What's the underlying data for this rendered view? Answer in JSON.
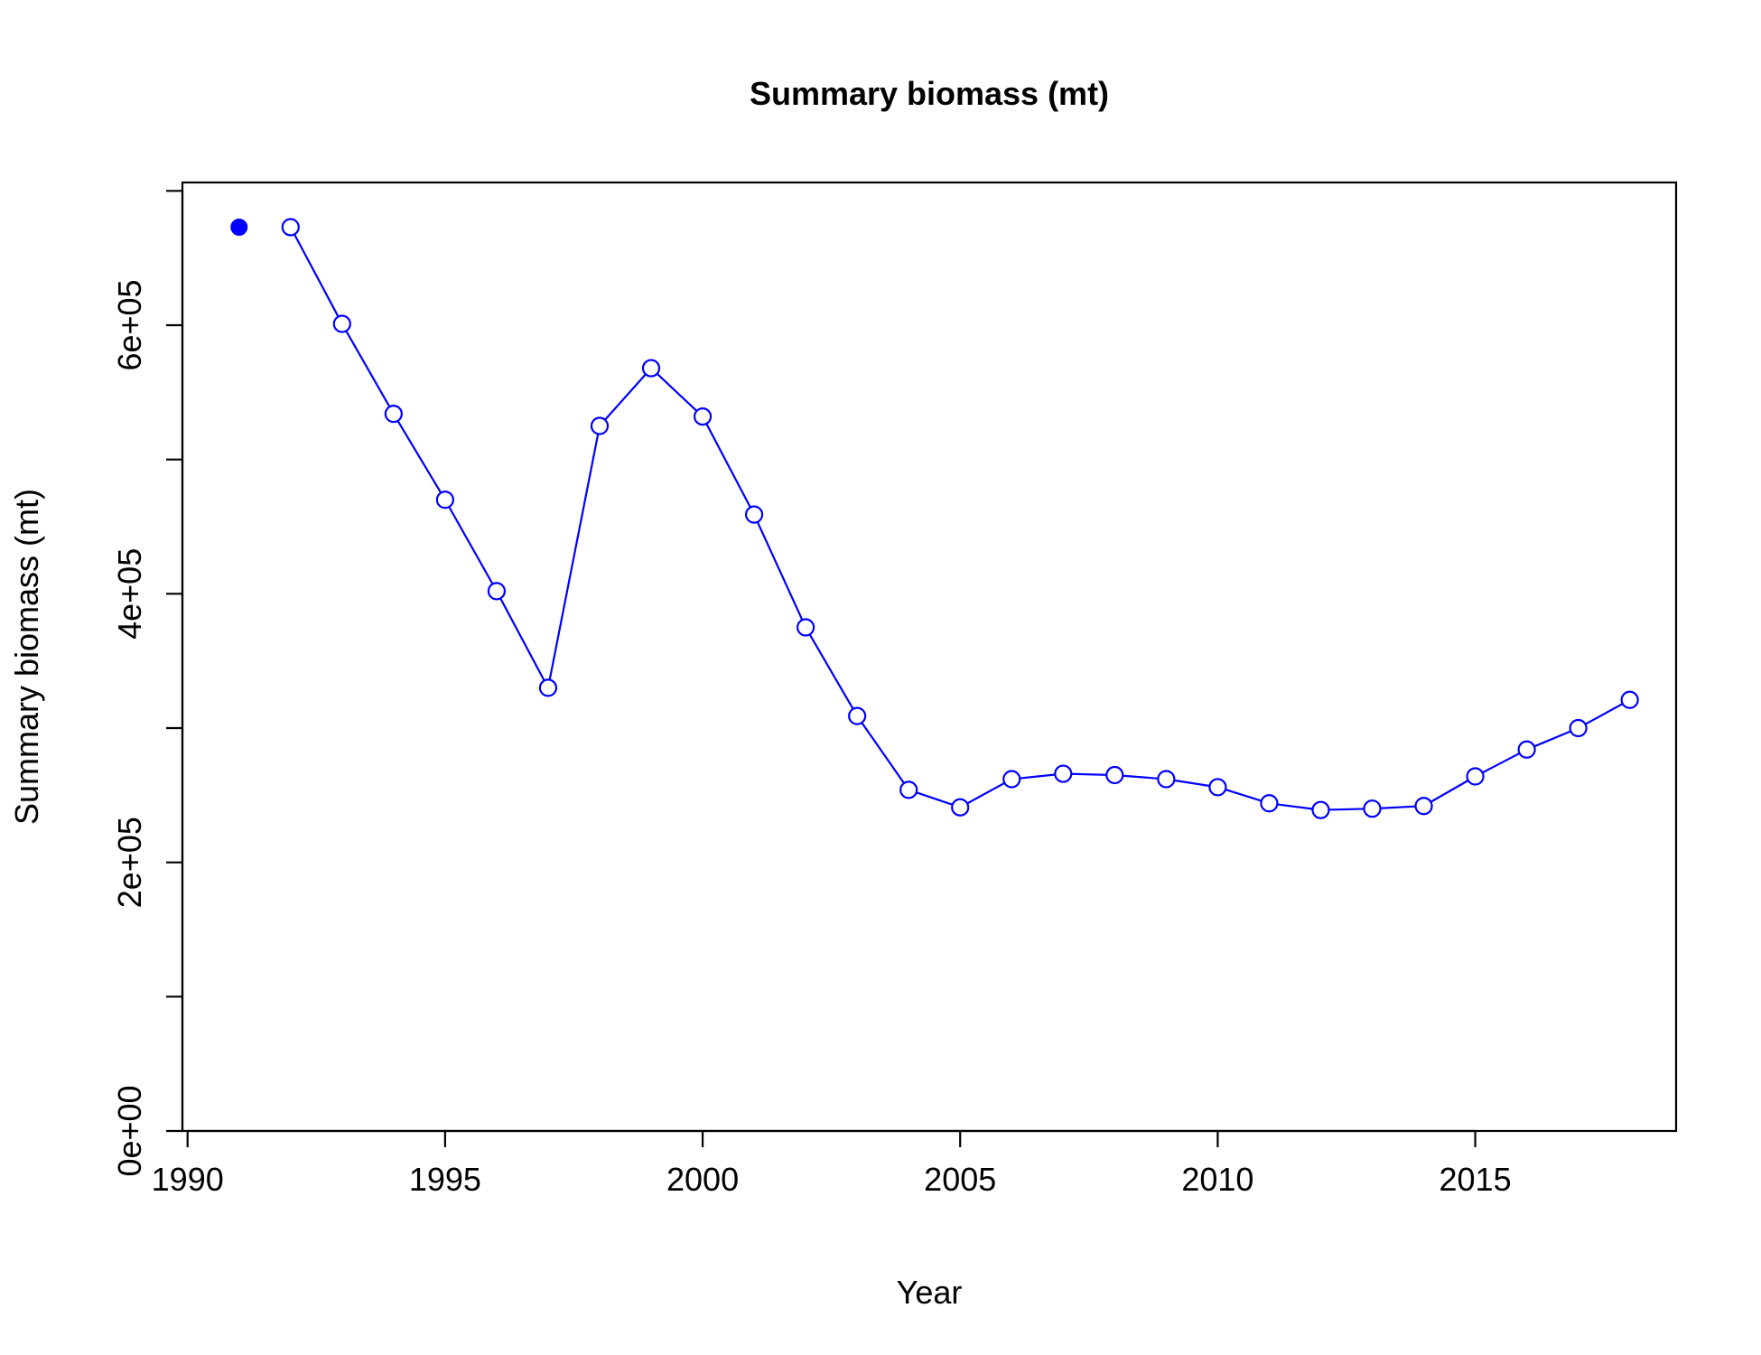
{
  "chart_data": {
    "type": "line",
    "title": "Summary biomass (mt)",
    "xlabel": "Year",
    "ylabel": "Summary biomass (mt)",
    "xlim": [
      1989.9,
      2018.9
    ],
    "ylim": [
      0,
      700000
    ],
    "x_ticks": [
      1990,
      1995,
      2000,
      2005,
      2010,
      2015
    ],
    "x_tick_labels": [
      "1990",
      "1995",
      "2000",
      "2005",
      "2010",
      "2015"
    ],
    "y_ticks": [
      0,
      100000,
      200000,
      300000,
      400000,
      500000,
      600000,
      700000
    ],
    "y_tick_labels": [
      "0e+00",
      "",
      "2e+05",
      "",
      "4e+05",
      "",
      "6e+05",
      ""
    ],
    "grid": false,
    "legend": "none",
    "colors": {
      "series": "#0000ff",
      "axis": "#000000",
      "background": "#ffffff"
    },
    "initial_point": {
      "x": 1991,
      "y": 673000,
      "marker": "filled-circle"
    },
    "series": [
      {
        "marker": "open-circle",
        "x": [
          1992,
          1993,
          1994,
          1995,
          1996,
          1997,
          1998,
          1999,
          2000,
          2001,
          2002,
          2003,
          2004,
          2005,
          2006,
          2007,
          2008,
          2009,
          2010,
          2011,
          2012,
          2013,
          2014,
          2015,
          2016,
          2017,
          2018
        ],
        "y": [
          673000,
          601000,
          534000,
          470000,
          402000,
          330000,
          525000,
          568000,
          532000,
          459000,
          375000,
          309000,
          254000,
          241000,
          262000,
          266000,
          265000,
          262000,
          256000,
          244000,
          239000,
          240000,
          242000,
          264000,
          284000,
          300000,
          321000
        ]
      }
    ]
  }
}
